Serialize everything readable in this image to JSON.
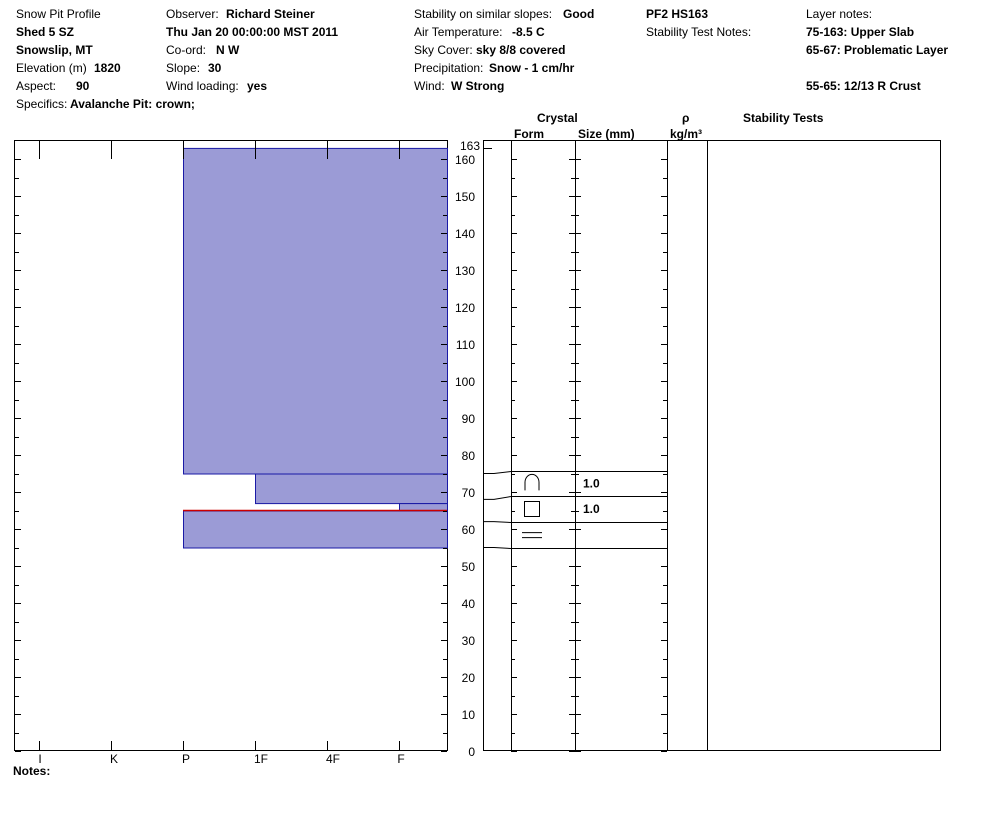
{
  "header": {
    "col1": {
      "title": "Snow Pit Profile",
      "location": "Shed 5 SZ",
      "area": "Snowslip, MT",
      "elevation_label": "Elevation (m)",
      "elevation_value": "1820",
      "aspect_label": "Aspect:",
      "aspect_value": "90",
      "specifics_label": "Specifics:",
      "specifics_value": "Avalanche Pit: crown;"
    },
    "col2": {
      "observer_label": "Observer:",
      "observer_value": "Richard Steiner",
      "date": "Thu Jan 20 00:00:00 MST 2011",
      "coord_label": "Co-ord:",
      "coord_value": "N  W",
      "slope_label": "Slope:",
      "slope_value": "30",
      "wind_loading_label": "Wind loading:",
      "wind_loading_value": "yes"
    },
    "col3": {
      "stability_label": "Stability on similar slopes:",
      "stability_value": "Good",
      "air_temp_label": "Air Temperature:",
      "air_temp_value": "-8.5 C",
      "sky_label": "Sky Cover:",
      "sky_value": "sky 8/8 covered",
      "precip_label": "Precipitation:",
      "precip_value": "Snow - 1 cm/hr",
      "wind_label": "Wind:",
      "wind_value": "W Strong"
    },
    "col4": {
      "profile_id": "PF2 HS163",
      "stability_notes_label": "Stability Test Notes:"
    },
    "col5": {
      "layer_notes_label": "Layer notes:",
      "notes": [
        "75-163: Upper Slab",
        "65-67: Problematic Layer",
        "",
        "55-65: 12/13 R Crust"
      ]
    }
  },
  "columns": {
    "crystal": "Crystal",
    "form": "Form",
    "size": "Size (mm)",
    "rho": "ρ",
    "density_unit": "kg/m³",
    "stability_tests": "Stability Tests"
  },
  "notes_label": "Notes:",
  "colors": {
    "layer_fill": "#9b9bd6",
    "layer_stroke": "#1a1aa6",
    "crust_line": "#cc0000"
  },
  "chart_data": {
    "type": "bar",
    "orientation": "horizontal",
    "y_axis": {
      "range": [
        0,
        163
      ],
      "ticks": [
        0,
        10,
        20,
        30,
        40,
        50,
        60,
        70,
        80,
        90,
        100,
        110,
        120,
        130,
        140,
        150,
        160
      ],
      "top_label": "163"
    },
    "x_axis": {
      "categories": [
        "I",
        "K",
        "P",
        "1F",
        "4F",
        "F"
      ],
      "direction": "right-to-left"
    },
    "layers": [
      {
        "top": 163,
        "bottom": 75,
        "hardness": "P"
      },
      {
        "top": 75,
        "bottom": 67,
        "hardness": "1F"
      },
      {
        "top": 67,
        "bottom": 65,
        "hardness": "F"
      },
      {
        "top": 65,
        "bottom": 55,
        "hardness": "P"
      }
    ],
    "crust_line_height": 65,
    "crystal_rows": [
      {
        "top": 75,
        "bottom": 68,
        "form": "rounded-grains-icon",
        "size": "1.0"
      },
      {
        "top": 68,
        "bottom": 62,
        "form": "faceted-crystals-icon",
        "size": "1.0"
      },
      {
        "top": 62,
        "bottom": 55,
        "form": "melt-freeze-crust-icon",
        "size": ""
      }
    ]
  }
}
